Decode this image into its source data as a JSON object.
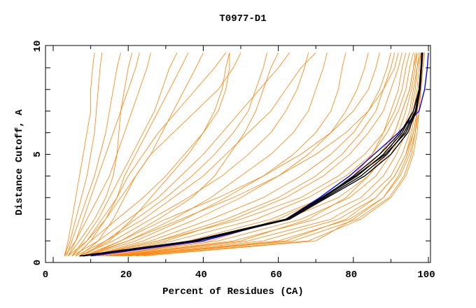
{
  "chart_data": {
    "type": "line",
    "title": "T0977-D1",
    "xlabel": "Percent of Residues (CA)",
    "ylabel": "Distance Cutoff, A",
    "xlim": [
      0,
      100
    ],
    "ylim": [
      0,
      10
    ],
    "x_ticks": [
      "0",
      "20",
      "40",
      "60",
      "80",
      "100"
    ],
    "y_ticks": [
      "0",
      "5",
      "10"
    ],
    "grid": false,
    "y_levels": [
      0.3,
      1,
      2,
      3,
      4,
      5,
      6,
      7,
      8,
      9,
      9.7
    ],
    "colors": {
      "models": "#ff8000",
      "highlight": "#0000ff",
      "reference": "#000000"
    },
    "series_orange": [
      [
        3,
        4,
        5,
        6,
        7,
        8,
        9,
        10,
        10,
        10.5,
        11
      ],
      [
        3,
        4.5,
        6,
        7.5,
        9,
        10,
        11,
        11.5,
        12,
        12.5,
        13
      ],
      [
        3.5,
        5,
        7,
        9,
        11,
        12.5,
        14,
        15,
        16,
        17,
        18
      ],
      [
        4,
        6,
        8,
        10,
        12,
        14,
        16,
        18,
        20,
        22,
        23
      ],
      [
        3,
        6,
        9,
        12,
        15,
        17,
        19,
        21,
        23,
        25,
        26
      ],
      [
        4,
        7,
        11,
        14,
        16,
        17,
        17.5,
        18,
        19,
        20,
        21
      ],
      [
        5,
        8,
        12,
        15,
        18,
        21,
        24,
        27,
        29,
        31,
        33
      ],
      [
        4,
        9,
        14,
        17,
        19,
        22,
        25,
        28,
        31,
        34,
        36
      ],
      [
        6,
        10,
        14,
        18,
        22,
        26,
        29,
        32,
        35,
        38,
        40
      ],
      [
        5,
        9,
        13,
        17,
        20,
        24,
        28,
        33,
        38,
        43,
        46
      ],
      [
        7,
        12,
        16,
        19,
        22,
        26,
        32,
        38,
        44,
        48,
        50
      ],
      [
        6,
        10,
        17,
        24,
        30,
        35,
        40,
        43,
        45,
        46,
        47
      ],
      [
        8,
        14,
        22,
        30,
        37,
        43,
        48,
        52,
        54,
        56,
        57
      ],
      [
        9,
        18,
        28,
        37,
        43,
        47,
        51,
        54,
        56,
        58,
        60
      ],
      [
        7,
        16,
        26,
        36,
        45,
        52,
        58,
        62,
        65,
        67,
        68
      ],
      [
        8,
        20,
        32,
        42,
        50,
        58,
        64,
        68,
        70,
        72,
        73
      ],
      [
        9,
        22,
        35,
        46,
        56,
        64,
        70,
        74,
        76,
        77,
        78
      ],
      [
        10,
        24,
        38,
        50,
        60,
        68,
        74,
        78,
        81,
        83,
        84
      ],
      [
        8,
        18,
        30,
        44,
        56,
        66,
        74,
        80,
        84,
        86,
        87
      ],
      [
        10,
        26,
        42,
        56,
        66,
        74,
        80,
        84,
        87,
        89,
        90
      ],
      [
        11,
        28,
        46,
        60,
        70,
        77,
        82,
        86,
        88,
        90,
        91
      ],
      [
        12,
        30,
        48,
        62,
        72,
        79,
        84,
        88,
        90,
        92,
        93
      ],
      [
        10,
        28,
        50,
        66,
        76,
        83,
        88,
        91,
        93,
        94,
        95
      ],
      [
        12,
        32,
        54,
        68,
        78,
        85,
        89,
        92,
        94,
        95,
        96
      ],
      [
        13,
        36,
        58,
        72,
        81,
        87,
        91,
        93,
        95,
        96,
        96.5
      ],
      [
        14,
        40,
        62,
        76,
        84,
        89,
        92,
        94,
        95.5,
        96.5,
        97
      ],
      [
        15,
        44,
        66,
        79,
        86,
        90,
        93,
        95,
        96,
        97,
        97.5
      ],
      [
        16,
        48,
        70,
        82,
        88,
        91.5,
        94,
        95.5,
        96.5,
        97,
        98
      ],
      [
        17,
        52,
        74,
        84,
        90,
        93,
        95,
        96,
        97,
        97.5,
        98
      ],
      [
        18,
        56,
        76,
        86,
        91,
        94,
        95.5,
        96.5,
        97.5,
        98,
        98.5
      ],
      [
        19,
        60,
        79,
        88,
        92.5,
        95,
        96.5,
        97,
        97.5,
        98,
        98.5
      ],
      [
        20,
        64,
        81,
        89.5,
        93.5,
        95.5,
        96.5,
        97.5,
        98,
        98.5,
        99
      ],
      [
        22,
        68,
        82,
        90,
        94,
        96,
        97,
        97.5,
        98,
        98.5,
        99
      ],
      [
        24,
        70,
        80,
        88,
        92,
        94.5,
        96,
        97,
        97.5,
        98,
        98.5
      ],
      [
        20,
        62,
        78,
        86,
        91,
        94,
        96,
        97,
        98,
        98.5,
        99
      ],
      [
        16,
        50,
        68,
        78,
        84,
        88,
        91,
        93,
        95,
        96,
        97
      ],
      [
        14,
        42,
        60,
        72,
        80,
        85,
        88,
        90,
        92,
        93,
        94
      ],
      [
        9,
        20,
        34,
        48,
        60,
        70,
        78,
        84,
        88,
        91,
        92
      ],
      [
        6,
        14,
        24,
        32,
        40,
        46,
        52,
        58,
        62,
        66,
        70
      ],
      [
        5,
        12,
        20,
        28,
        34,
        40,
        45,
        50,
        55,
        60,
        63
      ],
      [
        7,
        15,
        21,
        26,
        31,
        36,
        40,
        44,
        46,
        47,
        47
      ]
    ],
    "series_blue": [
      10,
      40,
      62,
      71,
      79,
      85.5,
      92,
      97.5,
      99,
      99.7,
      100
    ],
    "series_black": [
      [
        7,
        37,
        62,
        72,
        81,
        88,
        93,
        96,
        97.5,
        98,
        98.2
      ],
      [
        7.5,
        37.5,
        62.5,
        72.5,
        82,
        89,
        93.5,
        96.5,
        97.6,
        98.1,
        98.3
      ],
      [
        8,
        38,
        62,
        72,
        80,
        87,
        92.5,
        96,
        97.5,
        98,
        98.4
      ],
      [
        8,
        38.5,
        63,
        73,
        83,
        90,
        94.5,
        96.8,
        97.8,
        98.2,
        98.5
      ],
      [
        7,
        37,
        62,
        71.5,
        80.5,
        88.5,
        94,
        96.6,
        97.7,
        98.1,
        98.4
      ]
    ]
  }
}
